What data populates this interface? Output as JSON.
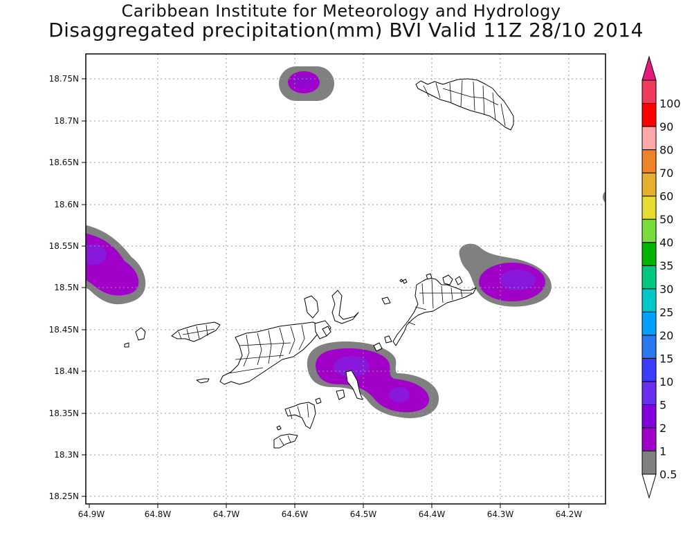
{
  "header": {
    "institute": "Caribbean Institute for Meteorology and Hydrology",
    "title": "Disaggregated precipitation(mm) BVI Valid 11Z 28/10 2014"
  },
  "map": {
    "y_ticks": [
      {
        "value": 18.75,
        "label": "18.75N"
      },
      {
        "value": 18.7,
        "label": "18.7N"
      },
      {
        "value": 18.65,
        "label": "18.65N"
      },
      {
        "value": 18.6,
        "label": "18.6N"
      },
      {
        "value": 18.55,
        "label": "18.55N"
      },
      {
        "value": 18.5,
        "label": "18.5N"
      },
      {
        "value": 18.45,
        "label": "18.45N"
      },
      {
        "value": 18.4,
        "label": "18.4N"
      },
      {
        "value": 18.35,
        "label": "18.35N"
      },
      {
        "value": 18.3,
        "label": "18.3N"
      },
      {
        "value": 18.25,
        "label": "18.25N"
      }
    ],
    "x_ticks": [
      {
        "value": -64.9,
        "label": "64.9W"
      },
      {
        "value": -64.8,
        "label": "64.8W"
      },
      {
        "value": -64.7,
        "label": "64.7W"
      },
      {
        "value": -64.6,
        "label": "64.6W"
      },
      {
        "value": -64.5,
        "label": "64.5W"
      },
      {
        "value": -64.4,
        "label": "64.4W"
      },
      {
        "value": -64.3,
        "label": "64.3W"
      },
      {
        "value": -64.2,
        "label": "64.2W"
      }
    ],
    "lon_range": [
      -64.903,
      -64.143
    ],
    "lat_range": [
      18.241,
      18.8
    ]
  },
  "colorbar": {
    "levels": [
      "0.5",
      "1",
      "2",
      "5",
      "10",
      "15",
      "20",
      "25",
      "30",
      "35",
      "40",
      "50",
      "60",
      "70",
      "80",
      "90",
      "100"
    ],
    "colors": [
      "#808080",
      "#a000c8",
      "#8200dc",
      "#6a30f0",
      "#3c3cff",
      "#2a78f0",
      "#00a0ff",
      "#00c8c8",
      "#00c880",
      "#00b400",
      "#78dc3c",
      "#e6dc32",
      "#e6af2d",
      "#f08228",
      "#ffaaaa",
      "#ff0000",
      "#f03c5a",
      "#e6197d"
    ]
  },
  "precip_cells": [
    {
      "name": "north-cell",
      "lon": -64.585,
      "lat": 18.744,
      "max_mm": 2
    },
    {
      "name": "west-cell",
      "lon": -64.89,
      "lat": 18.535,
      "max_mm": 5
    },
    {
      "name": "east-cell",
      "lon": -64.27,
      "lat": 18.507,
      "max_mm": 5
    },
    {
      "name": "central-cell",
      "lon": -64.51,
      "lat": 18.405,
      "max_mm": 5
    },
    {
      "name": "southeast-cell",
      "lon": -64.44,
      "lat": 18.372,
      "max_mm": 5
    }
  ],
  "chart_data": {
    "type": "heatmap",
    "title": "Disaggregated precipitation(mm) BVI Valid 11Z 28/10 2014",
    "subtitle": "Caribbean Institute for Meteorology and Hydrology",
    "x_range": [
      -64.903,
      -64.143
    ],
    "y_range": [
      18.241,
      18.8
    ],
    "legend_levels_mm": [
      0.5,
      1,
      2,
      5,
      10,
      15,
      20,
      25,
      30,
      35,
      40,
      50,
      60,
      70,
      80,
      90,
      100
    ]
  }
}
